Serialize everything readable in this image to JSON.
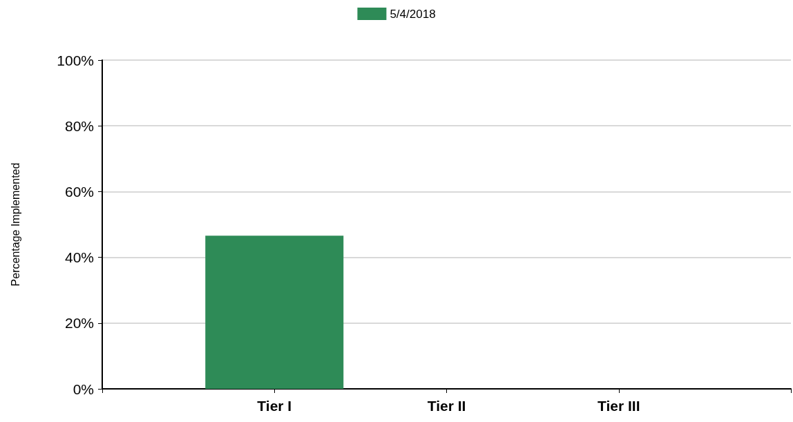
{
  "chart_data": {
    "type": "bar",
    "categories": [
      "Tier I",
      "Tier II",
      "Tier III"
    ],
    "ylabel": "Percentage Implemented",
    "series": [
      {
        "name": "5/4/2018",
        "color": "#2e8b57",
        "values": [
          46.6,
          0,
          0
        ]
      }
    ],
    "ylim": [
      0,
      100
    ],
    "yticks": [
      {
        "value": 0,
        "label": "0%"
      },
      {
        "value": 20,
        "label": "20%"
      },
      {
        "value": 40,
        "label": "40%"
      },
      {
        "value": 60,
        "label": "60%"
      },
      {
        "value": 80,
        "label": "80%"
      },
      {
        "value": 100,
        "label": "100%"
      }
    ],
    "grid": "y",
    "legend": "top"
  }
}
